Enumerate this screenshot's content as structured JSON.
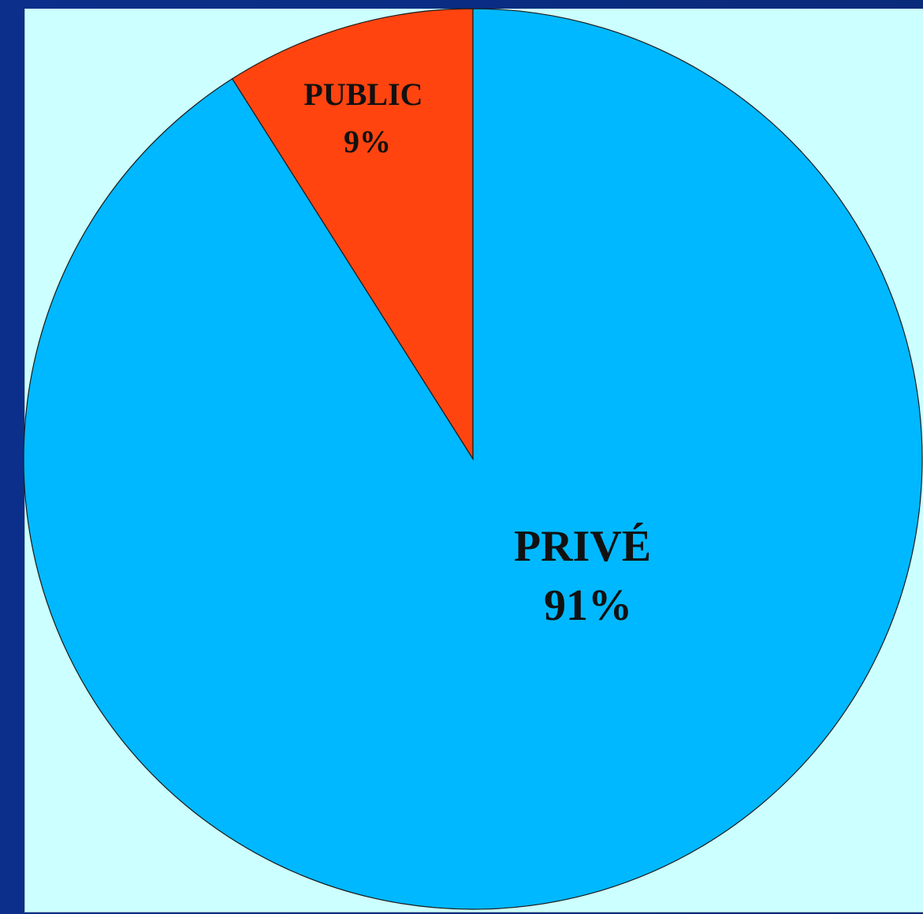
{
  "chart_data": {
    "type": "pie",
    "slices": [
      {
        "label": "PUBLIC",
        "value": 9,
        "value_label": "9%",
        "color": "#ff4410"
      },
      {
        "label": "PRIVÉ",
        "value": 91,
        "value_label": "91%",
        "color": "#00b8ff"
      }
    ],
    "start_angle_deg": 0,
    "direction": "counterclockwise-from-top-for-first-slice"
  },
  "colors": {
    "frame": "#0a2a7a",
    "plot_background": "#ccffff",
    "outline": "#1a1a1a"
  }
}
